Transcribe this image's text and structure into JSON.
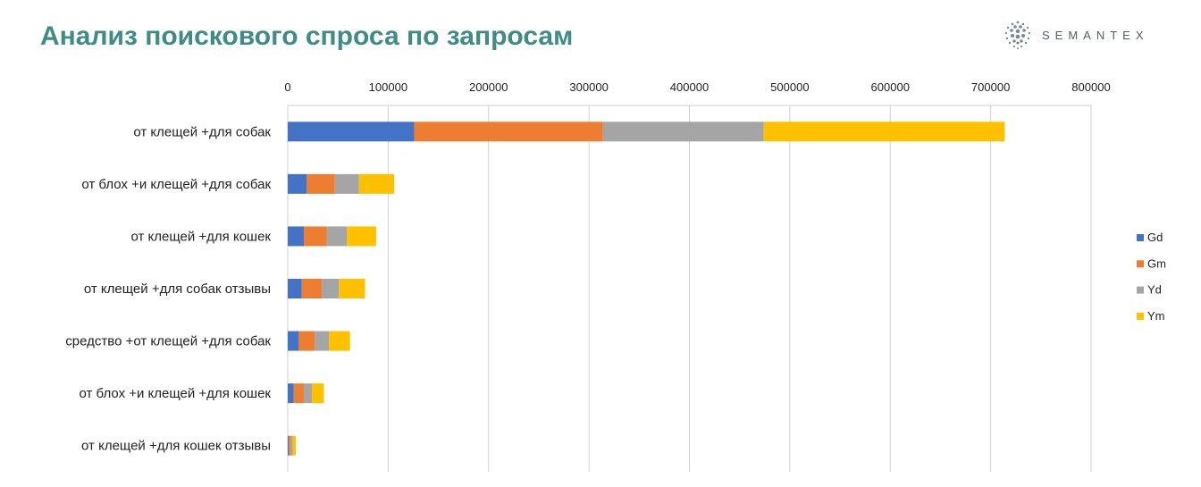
{
  "header": {
    "title": "Анализ поискового спроса по запросам",
    "logo_text": "SEMANTEX"
  },
  "colors": {
    "title": "#3f8c86",
    "Gd": "#4472c4",
    "Gm": "#ed7d31",
    "Yd": "#a5a5a5",
    "Ym": "#ffc000",
    "grid": "#d0d0d0"
  },
  "chart_data": {
    "type": "bar",
    "orientation": "horizontal",
    "stacked": true,
    "title": "",
    "xlabel": "",
    "ylabel": "",
    "xlim": [
      0,
      800000
    ],
    "x_ticks": [
      0,
      100000,
      200000,
      300000,
      400000,
      500000,
      600000,
      700000,
      800000
    ],
    "x_tick_labels": [
      "0",
      "100000",
      "200000",
      "300000",
      "400000",
      "500000",
      "600000",
      "700000",
      "800000"
    ],
    "x_axis_position": "top",
    "grid": true,
    "legend_position": "right",
    "categories": [
      "от клещей +для собак",
      "от блох +и клещей +для собак",
      "от клещей +для кошек",
      "от клещей +для собак отзывы",
      "средство +от клещей +для собак",
      "от блох +и клещей +для кошек",
      "от клещей +для кошек отзывы"
    ],
    "series": [
      {
        "name": "Gd",
        "color": "#4472c4",
        "values": [
          126000,
          19000,
          16000,
          14000,
          11000,
          6000,
          1000
        ]
      },
      {
        "name": "Gm",
        "color": "#ed7d31",
        "values": [
          188000,
          28000,
          23000,
          20000,
          16000,
          10000,
          2000
        ]
      },
      {
        "name": "Yd",
        "color": "#a5a5a5",
        "values": [
          160000,
          24000,
          20000,
          17000,
          14000,
          8000,
          2000
        ]
      },
      {
        "name": "Ym",
        "color": "#ffc000",
        "values": [
          240000,
          35000,
          29000,
          26000,
          21000,
          12000,
          3000
        ]
      }
    ]
  }
}
